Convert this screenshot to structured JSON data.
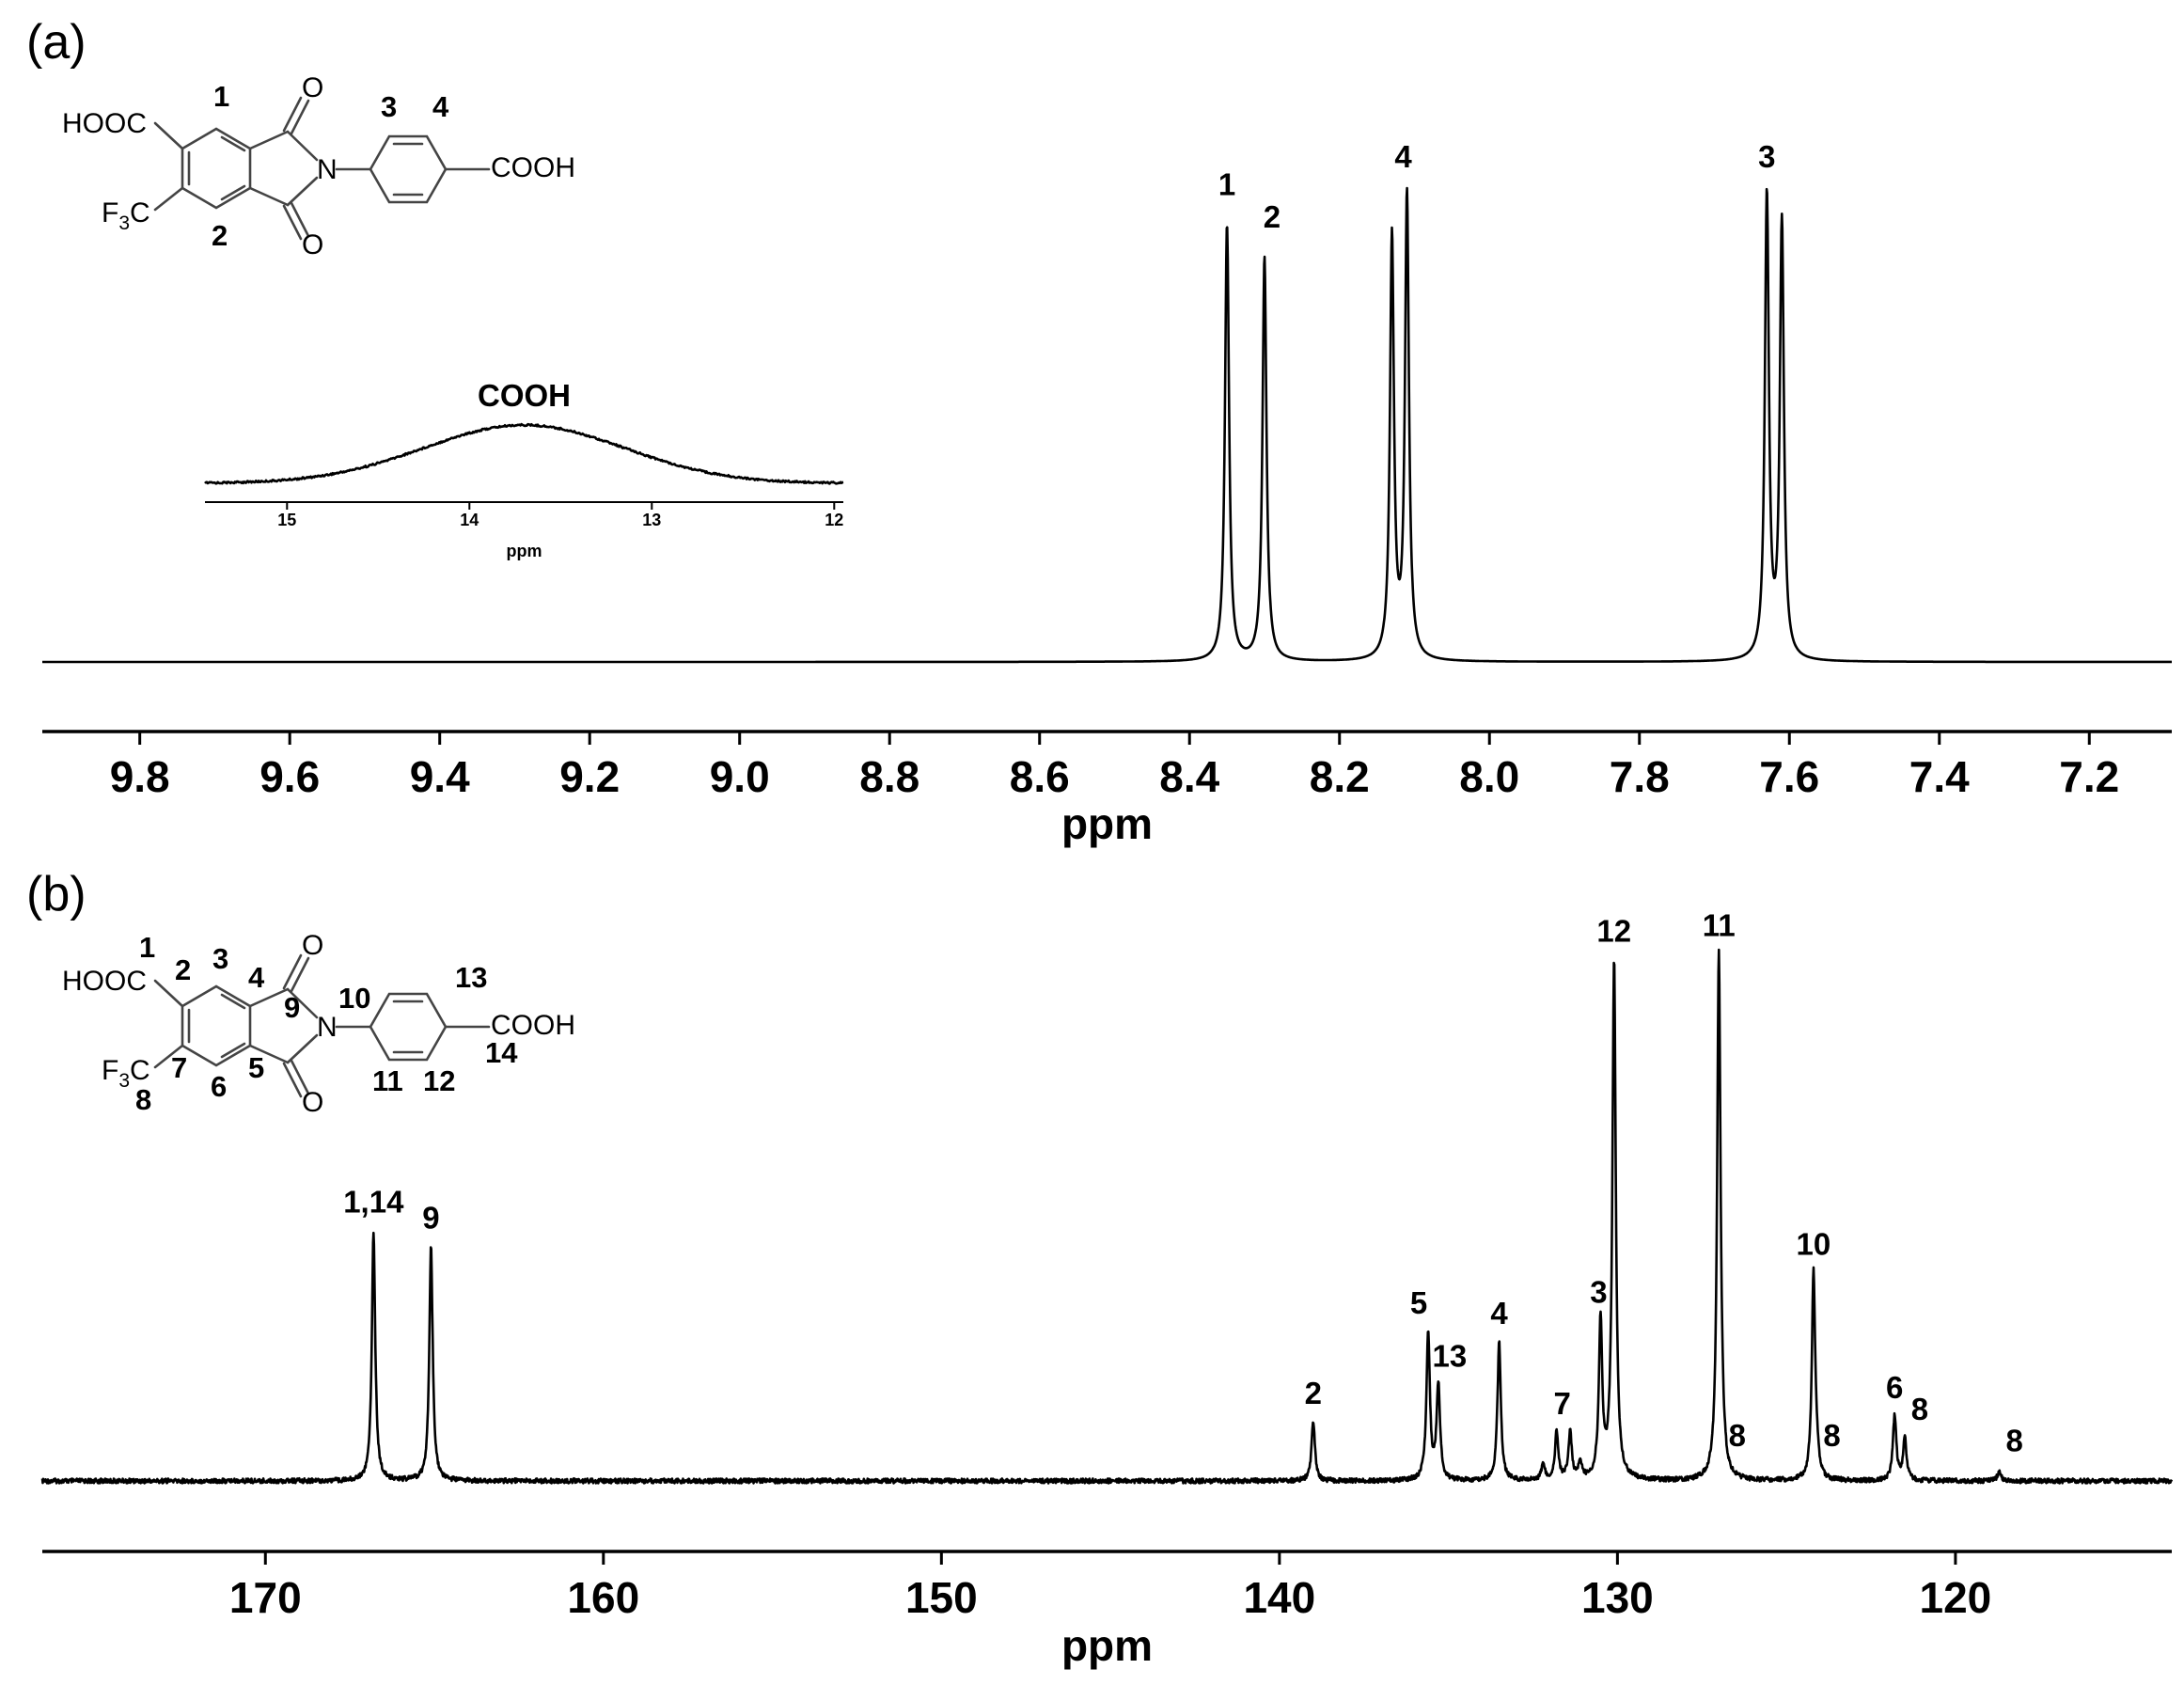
{
  "figure": {
    "panel_a_label": "(a)",
    "panel_b_label": "(b)",
    "structure_a": {
      "groups": {
        "hooc": "HOOC",
        "f3c": "F",
        "f3c_sub": "3",
        "f3c_c": "C",
        "cooh": "COOH",
        "n": "N",
        "o_top": "O",
        "o_bottom": "O"
      },
      "numbers": {
        "n1": "1",
        "n2": "2",
        "n3": "3",
        "n4": "4"
      }
    },
    "structure_b": {
      "groups": {
        "hooc": "HOOC",
        "f3c": "F",
        "f3c_sub": "3",
        "f3c_c": "C",
        "cooh": "COOH",
        "n": "N",
        "o_top": "O",
        "o_bottom": "O"
      },
      "numbers": {
        "n1": "1",
        "n2": "2",
        "n3": "3",
        "n4": "4",
        "n5": "5",
        "n6": "6",
        "n7": "7",
        "n8": "8",
        "n9": "9",
        "n10": "10",
        "n11": "11",
        "n12": "12",
        "n13": "13",
        "n14": "14"
      }
    }
  },
  "chart_data": [
    {
      "type": "line",
      "panel": "(a)",
      "xlabel": "ppm",
      "xlim": [
        9.93,
        7.09
      ],
      "x_reversed": true,
      "x_ticks": [
        "9.8",
        "9.6",
        "9.4",
        "9.2",
        "9.0",
        "8.8",
        "8.6",
        "8.4",
        "8.2",
        "8.0",
        "7.8",
        "7.6",
        "7.4",
        "7.2"
      ],
      "x_tick_values": [
        9.8,
        9.6,
        9.4,
        9.2,
        9.0,
        8.8,
        8.6,
        8.4,
        8.2,
        8.0,
        7.8,
        7.6,
        7.4,
        7.2
      ],
      "y_relative_range": [
        0,
        1.0
      ],
      "peaks": [
        {
          "ppm": 8.35,
          "height": 0.94,
          "label": "1"
        },
        {
          "ppm": 8.3,
          "height": 0.87,
          "label": "2"
        },
        {
          "ppm": 8.13,
          "height": 0.91
        },
        {
          "ppm": 8.11,
          "height": 1.0,
          "label": "4"
        },
        {
          "ppm": 7.63,
          "height": 1.0,
          "label": "3"
        },
        {
          "ppm": 7.61,
          "height": 0.94
        }
      ],
      "inset": {
        "title": "COOH",
        "xlabel": "ppm",
        "xlim": [
          15.45,
          11.95
        ],
        "x_ticks": [
          "15",
          "14",
          "13",
          "12"
        ],
        "x_tick_values": [
          15,
          14,
          13,
          12
        ],
        "peak": {
          "ppm": 13.7,
          "height": 1.0,
          "width": 0.55
        }
      }
    },
    {
      "type": "line",
      "panel": "(b)",
      "xlabel": "ppm",
      "xlim": [
        176.6,
        113.6
      ],
      "x_reversed": true,
      "x_ticks": [
        "170",
        "160",
        "150",
        "140",
        "130",
        "120"
      ],
      "x_tick_values": [
        170,
        160,
        150,
        140,
        130,
        120
      ],
      "y_relative_range": [
        0,
        1.0
      ],
      "peaks": [
        {
          "ppm": 166.8,
          "height": 0.47,
          "label": "1,14"
        },
        {
          "ppm": 165.1,
          "height": 0.44,
          "label": "9"
        },
        {
          "ppm": 139.0,
          "height": 0.11,
          "label": "2"
        },
        {
          "ppm": 135.6,
          "height": 0.28,
          "label": "5"
        },
        {
          "ppm": 135.3,
          "height": 0.18,
          "label": "13"
        },
        {
          "ppm": 133.5,
          "height": 0.26,
          "label": "4"
        },
        {
          "ppm": 132.2,
          "height": 0.03
        },
        {
          "ppm": 131.8,
          "height": 0.09,
          "label": "7"
        },
        {
          "ppm": 131.4,
          "height": 0.09
        },
        {
          "ppm": 131.1,
          "height": 0.03
        },
        {
          "ppm": 130.5,
          "height": 0.3,
          "label": "3"
        },
        {
          "ppm": 130.1,
          "height": 0.98,
          "label": "12"
        },
        {
          "ppm": 127.0,
          "height": 0.99,
          "label": "11"
        },
        {
          "ppm": 126.9,
          "height": 0.03,
          "label": "8"
        },
        {
          "ppm": 124.2,
          "height": 0.39,
          "label": "10"
        },
        {
          "ppm": 124.1,
          "height": 0.03,
          "label": "8"
        },
        {
          "ppm": 121.8,
          "height": 0.12,
          "label": "6"
        },
        {
          "ppm": 121.5,
          "height": 0.08,
          "label": "8"
        },
        {
          "ppm": 118.7,
          "height": 0.02,
          "label": "8"
        }
      ]
    }
  ]
}
